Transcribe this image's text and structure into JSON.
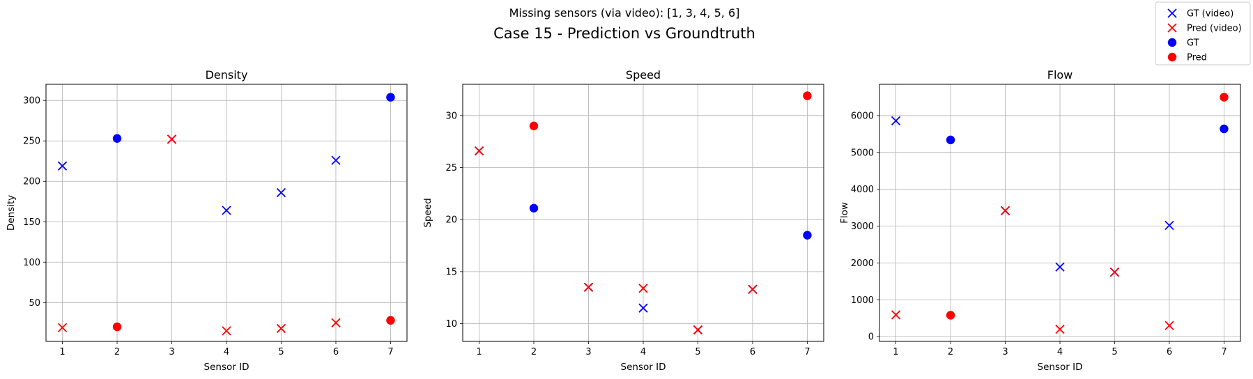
{
  "figure": {
    "suptitle": "Missing sensors (via video): [1, 3, 4, 5, 6]",
    "title": "Case 15 - Prediction vs Groundtruth"
  },
  "legend": {
    "placement": "top-right",
    "items": [
      {
        "label": "GT (video)",
        "marker": "x",
        "color": "#0000ff"
      },
      {
        "label": "Pred (video)",
        "marker": "x",
        "color": "#ff0000"
      },
      {
        "label": "GT",
        "marker": "o",
        "color": "#0000ff"
      },
      {
        "label": "Pred",
        "marker": "o",
        "color": "#ff0000"
      }
    ]
  },
  "chart_data": [
    {
      "type": "scatter",
      "title": "Density",
      "xlabel": "Sensor ID",
      "ylabel": "Density",
      "xlim": [
        0.7,
        7.3
      ],
      "ylim": [
        2,
        320
      ],
      "xticks": [
        1,
        2,
        3,
        4,
        5,
        6,
        7
      ],
      "yticks": [
        50,
        100,
        150,
        200,
        250,
        300
      ],
      "grid": true,
      "series": [
        {
          "name": "GT (video)",
          "marker": "x",
          "color": "#0000ff",
          "points": [
            [
              1,
              219
            ],
            [
              3,
              252
            ],
            [
              4,
              164
            ],
            [
              5,
              186
            ],
            [
              6,
              226
            ]
          ]
        },
        {
          "name": "Pred (video)",
          "marker": "x",
          "color": "#ff0000",
          "points": [
            [
              1,
              19
            ],
            [
              3,
              252
            ],
            [
              4,
              15
            ],
            [
              5,
              18
            ],
            [
              6,
              25
            ]
          ]
        },
        {
          "name": "GT",
          "marker": "o",
          "color": "#0000ff",
          "points": [
            [
              2,
              253
            ],
            [
              7,
              304
            ]
          ]
        },
        {
          "name": "Pred",
          "marker": "o",
          "color": "#ff0000",
          "points": [
            [
              2,
              20
            ],
            [
              7,
              28
            ]
          ]
        }
      ]
    },
    {
      "type": "scatter",
      "title": "Speed",
      "xlabel": "Sensor ID",
      "ylabel": "Speed",
      "xlim": [
        0.7,
        7.3
      ],
      "ylim": [
        8.3,
        33.0
      ],
      "xticks": [
        1,
        2,
        3,
        4,
        5,
        6,
        7
      ],
      "yticks": [
        10,
        15,
        20,
        25,
        30
      ],
      "grid": true,
      "series": [
        {
          "name": "GT (video)",
          "marker": "x",
          "color": "#0000ff",
          "points": [
            [
              1,
              26.6
            ],
            [
              3,
              13.5
            ],
            [
              4,
              11.5
            ],
            [
              5,
              9.4
            ],
            [
              6,
              13.3
            ]
          ]
        },
        {
          "name": "Pred (video)",
          "marker": "x",
          "color": "#ff0000",
          "points": [
            [
              1,
              26.6
            ],
            [
              3,
              13.5
            ],
            [
              4,
              13.4
            ],
            [
              5,
              9.4
            ],
            [
              6,
              13.3
            ]
          ]
        },
        {
          "name": "GT",
          "marker": "o",
          "color": "#0000ff",
          "points": [
            [
              2,
              21.1
            ],
            [
              7,
              18.5
            ]
          ]
        },
        {
          "name": "Pred",
          "marker": "o",
          "color": "#ff0000",
          "points": [
            [
              2,
              29.0
            ],
            [
              7,
              31.9
            ]
          ]
        }
      ]
    },
    {
      "type": "scatter",
      "title": "Flow",
      "xlabel": "Sensor ID",
      "ylabel": "Flow",
      "xlim": [
        0.7,
        7.3
      ],
      "ylim": [
        -130,
        6850
      ],
      "xticks": [
        1,
        2,
        3,
        4,
        5,
        6,
        7
      ],
      "yticks": [
        0,
        1000,
        2000,
        3000,
        4000,
        5000,
        6000
      ],
      "grid": true,
      "series": [
        {
          "name": "GT (video)",
          "marker": "x",
          "color": "#0000ff",
          "points": [
            [
              1,
              5860
            ],
            [
              3,
              3420
            ],
            [
              4,
              1890
            ],
            [
              5,
              1750
            ],
            [
              6,
              3020
            ]
          ]
        },
        {
          "name": "Pred (video)",
          "marker": "x",
          "color": "#ff0000",
          "points": [
            [
              1,
              590
            ],
            [
              3,
              3420
            ],
            [
              4,
              200
            ],
            [
              5,
              1750
            ],
            [
              6,
              300
            ]
          ]
        },
        {
          "name": "GT",
          "marker": "o",
          "color": "#0000ff",
          "points": [
            [
              2,
              5340
            ],
            [
              7,
              5640
            ]
          ]
        },
        {
          "name": "Pred",
          "marker": "o",
          "color": "#ff0000",
          "points": [
            [
              2,
              580
            ],
            [
              7,
              6500
            ]
          ]
        }
      ]
    }
  ]
}
